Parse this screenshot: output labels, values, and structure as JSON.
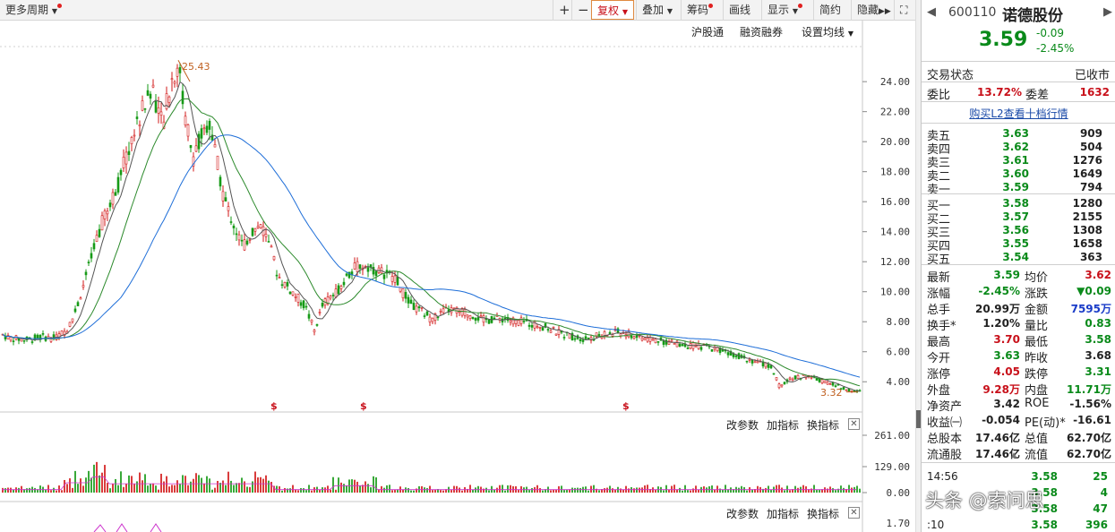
{
  "toolbar": {
    "period": "更多周期",
    "fuquan": "复权",
    "overlay": "叠加",
    "chips": "筹码",
    "drawline": "画线",
    "display": "显示",
    "simple": "简约",
    "hide": "隐藏"
  },
  "chart_header": {
    "hugutong": "沪股通",
    "margin": "融资融券",
    "ma_settings": "设置均线"
  },
  "price_axis": [
    "24.00",
    "22.00",
    "20.00",
    "18.00",
    "16.00",
    "14.00",
    "12.00",
    "10.00",
    "8.00",
    "6.00",
    "4.00"
  ],
  "annotations": {
    "high": "25.43",
    "low": "3.32",
    "marker": "$"
  },
  "volume_panel": {
    "modify": "改参数",
    "add": "加指标",
    "swap": "换指标",
    "axis": [
      "261.00",
      "129.00",
      "0.00"
    ]
  },
  "macd_panel": {
    "modify": "改参数",
    "add": "加指标",
    "swap": "换指标",
    "axis_top": "1.70"
  },
  "colors": {
    "up": "#c8101a",
    "down": "#0a8a1a",
    "ma5": "#555555",
    "ma10": "#2c8a2c",
    "ma20": "#1e6ed8",
    "candle_up": "#d21a1a",
    "candle_down": "#169a16"
  },
  "stock": {
    "code": "600110",
    "name": "诺德股份",
    "price": "3.59",
    "change": "-0.09",
    "change_pct": "-2.45%"
  },
  "status": {
    "label": "交易状态",
    "value": "已收市"
  },
  "weibi": {
    "label": "委比",
    "value": "13.72%",
    "diff_label": "委差",
    "diff_value": "1632"
  },
  "l2_link": "购买L2查看十档行情",
  "sells": [
    {
      "label": "卖五",
      "price": "3.63",
      "vol": "909"
    },
    {
      "label": "卖四",
      "price": "3.62",
      "vol": "504"
    },
    {
      "label": "卖三",
      "price": "3.61",
      "vol": "1276"
    },
    {
      "label": "卖二",
      "price": "3.60",
      "vol": "1649"
    },
    {
      "label": "卖一",
      "price": "3.59",
      "vol": "794"
    }
  ],
  "buys": [
    {
      "label": "买一",
      "price": "3.58",
      "vol": "1280"
    },
    {
      "label": "买二",
      "price": "3.57",
      "vol": "2155"
    },
    {
      "label": "买三",
      "price": "3.56",
      "vol": "1308"
    },
    {
      "label": "买四",
      "price": "3.55",
      "vol": "1658"
    },
    {
      "label": "买五",
      "price": "3.54",
      "vol": "363"
    }
  ],
  "quote": [
    {
      "l1": "最新",
      "v1": "3.59",
      "c1": "green",
      "l2": "均价",
      "v2": "3.62",
      "c2": "red"
    },
    {
      "l1": "涨幅",
      "v1": "-2.45%",
      "c1": "green",
      "l2": "涨跌",
      "v2": "▼0.09",
      "c2": "green"
    },
    {
      "l1": "总手",
      "v1": "20.99万",
      "c1": "",
      "l2": "金额",
      "v2": "7595万",
      "c2": "blue"
    },
    {
      "l1": "换手*",
      "v1": "1.20%",
      "c1": "",
      "l2": "量比",
      "v2": "0.83",
      "c2": "green"
    },
    {
      "l1": "最高",
      "v1": "3.70",
      "c1": "red",
      "l2": "最低",
      "v2": "3.58",
      "c2": "green"
    },
    {
      "l1": "今开",
      "v1": "3.63",
      "c1": "green",
      "l2": "昨收",
      "v2": "3.68",
      "c2": ""
    },
    {
      "l1": "涨停",
      "v1": "4.05",
      "c1": "red",
      "l2": "跌停",
      "v2": "3.31",
      "c2": "green"
    },
    {
      "l1": "外盘",
      "v1": "9.28万",
      "c1": "red",
      "l2": "内盘",
      "v2": "11.71万",
      "c2": "green"
    },
    {
      "l1": "净资产",
      "v1": "3.42",
      "c1": "",
      "l2": "ROE",
      "v2": "-1.56%",
      "c2": ""
    },
    {
      "l1": "收益㈠",
      "v1": "-0.054",
      "c1": "",
      "l2": "PE(动)*",
      "v2": "-16.61",
      "c2": ""
    },
    {
      "l1": "总股本",
      "v1": "17.46亿",
      "c1": "",
      "l2": "总值",
      "v2": "62.70亿",
      "c2": ""
    },
    {
      "l1": "流通股",
      "v1": "17.46亿",
      "c1": "",
      "l2": "流值",
      "v2": "62.70亿",
      "c2": ""
    }
  ],
  "ticks": [
    {
      "time": "14:56",
      "price": "3.58",
      "vol": "25"
    },
    {
      "time": "",
      "price": "3.58",
      "vol": "4"
    },
    {
      "time": "",
      "price": "3.58",
      "vol": "47"
    },
    {
      "time": ":10",
      "price": "3.58",
      "vol": "396"
    }
  ],
  "watermark": "头条 @索问思"
}
